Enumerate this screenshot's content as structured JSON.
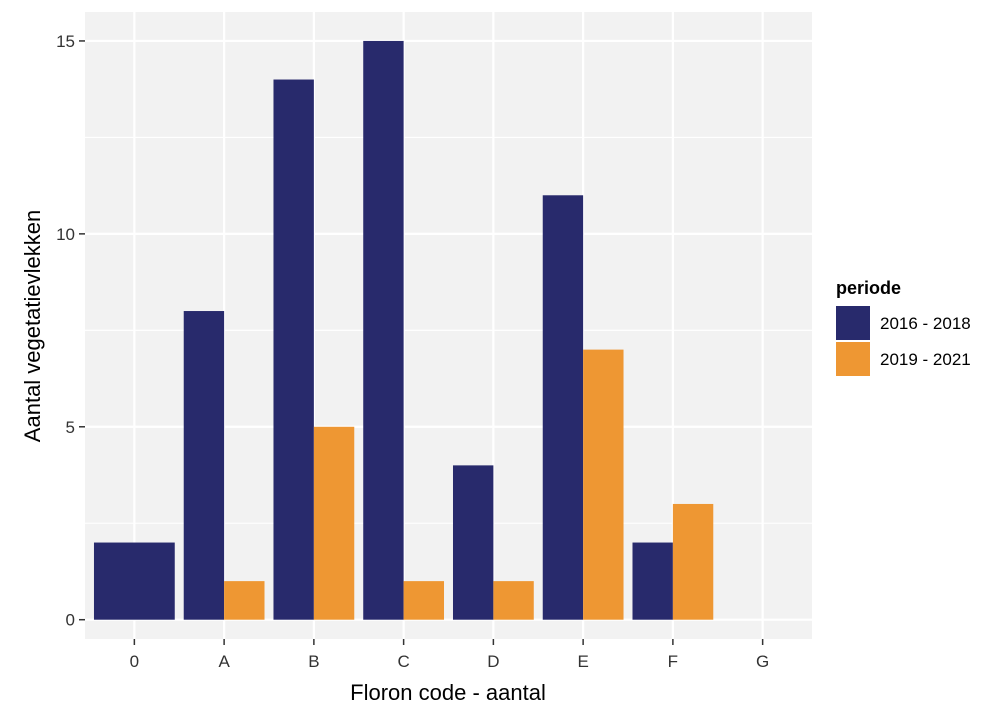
{
  "chart_data": {
    "type": "bar",
    "barmode": "group",
    "categories": [
      "0",
      "A",
      "B",
      "C",
      "D",
      "E",
      "F",
      "G"
    ],
    "series": [
      {
        "name": "2016 - 2018",
        "color": "#282a6c",
        "values": [
          2,
          8,
          14,
          15,
          4,
          11,
          2,
          0
        ]
      },
      {
        "name": "2019 - 2021",
        "color": "#ee9733",
        "values": [
          null,
          1,
          5,
          1,
          1,
          7,
          3,
          0
        ]
      }
    ],
    "title": "",
    "xlabel": "Floron code - aantal",
    "ylabel": "Aantal vegetatievlekken",
    "ylim": [
      0,
      15.75
    ],
    "yticks": [
      0,
      5,
      10,
      15
    ],
    "grid": true,
    "legend": {
      "title": "periode",
      "position": "right"
    },
    "colors": {
      "panel": "#ebebeb",
      "grid": "#ffffff"
    }
  }
}
